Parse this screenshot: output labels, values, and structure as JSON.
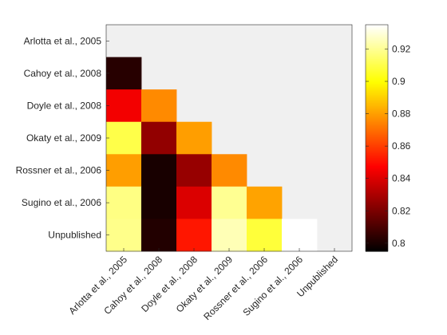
{
  "chart_data": {
    "type": "heatmap",
    "title": "",
    "xlabel": "",
    "ylabel": "",
    "row_labels": [
      "Arlotta et al., 2005",
      "Cahoy et al., 2008",
      "Doyle et al., 2008",
      "Okaty et al., 2009",
      "Rossner et al., 2006",
      "Sugino et al., 2006",
      "Unpublished"
    ],
    "col_labels": [
      "Arlotta et al., 2005",
      "Cahoy et al., 2008",
      "Doyle et al., 2008",
      "Okaty et al., 2009",
      "Rossner et al., 2006",
      "Sugino et al., 2006",
      "Unpublished"
    ],
    "values": [
      [
        null,
        null,
        null,
        null,
        null,
        null,
        null
      ],
      [
        0.803,
        null,
        null,
        null,
        null,
        null,
        null
      ],
      [
        0.845,
        0.876,
        null,
        null,
        null,
        null,
        null
      ],
      [
        0.91,
        0.825,
        0.88,
        null,
        null,
        null,
        null
      ],
      [
        0.88,
        0.8,
        0.826,
        0.876,
        null,
        null,
        null
      ],
      [
        0.918,
        0.8,
        0.84,
        0.92,
        0.881,
        null,
        null
      ],
      [
        0.919,
        0.802,
        0.852,
        0.925,
        0.908,
        0.935,
        null
      ]
    ],
    "colorbar": {
      "range": [
        0.795,
        0.935
      ],
      "ticks": [
        0.8,
        0.82,
        0.84,
        0.86,
        0.88,
        0.9,
        0.92
      ],
      "tick_labels": [
        "0.8",
        "0.82",
        "0.84",
        "0.86",
        "0.88",
        "0.9",
        "0.92"
      ],
      "colormap": "hot"
    },
    "empty_cell_color": "#f0f0f0",
    "grid": false
  }
}
